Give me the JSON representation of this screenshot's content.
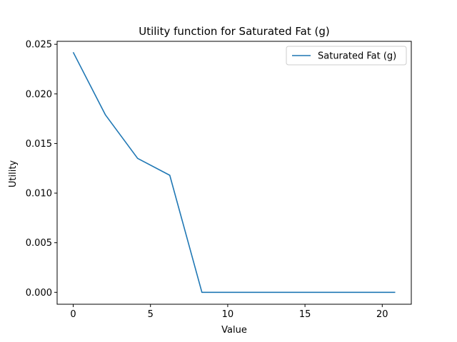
{
  "chart_data": {
    "type": "line",
    "title": "Utility function for Saturated Fat (g)",
    "xlabel": "Value",
    "ylabel": "Utility",
    "xlim": [
      -1.04,
      21.88
    ],
    "ylim": [
      -0.0012,
      0.0253
    ],
    "xticks": [
      0,
      5,
      10,
      15,
      20
    ],
    "xtick_labels": [
      "0",
      "5",
      "10",
      "15",
      "20"
    ],
    "yticks": [
      0.0,
      0.005,
      0.01,
      0.015,
      0.02,
      0.025
    ],
    "ytick_labels": [
      "0.000",
      "0.005",
      "0.010",
      "0.015",
      "0.020",
      "0.025"
    ],
    "grid": false,
    "legend_position": "top-right",
    "series": [
      {
        "name": "Saturated Fat (g)",
        "color": "#1f77b4",
        "x": [
          0,
          2.08,
          4.17,
          6.25,
          8.33,
          10.42,
          12.5,
          14.58,
          16.67,
          18.75,
          20.84
        ],
        "y": [
          0.0242,
          0.0179,
          0.0135,
          0.0118,
          0.0,
          0.0,
          0.0,
          0.0,
          0.0,
          0.0,
          0.0
        ]
      }
    ]
  }
}
